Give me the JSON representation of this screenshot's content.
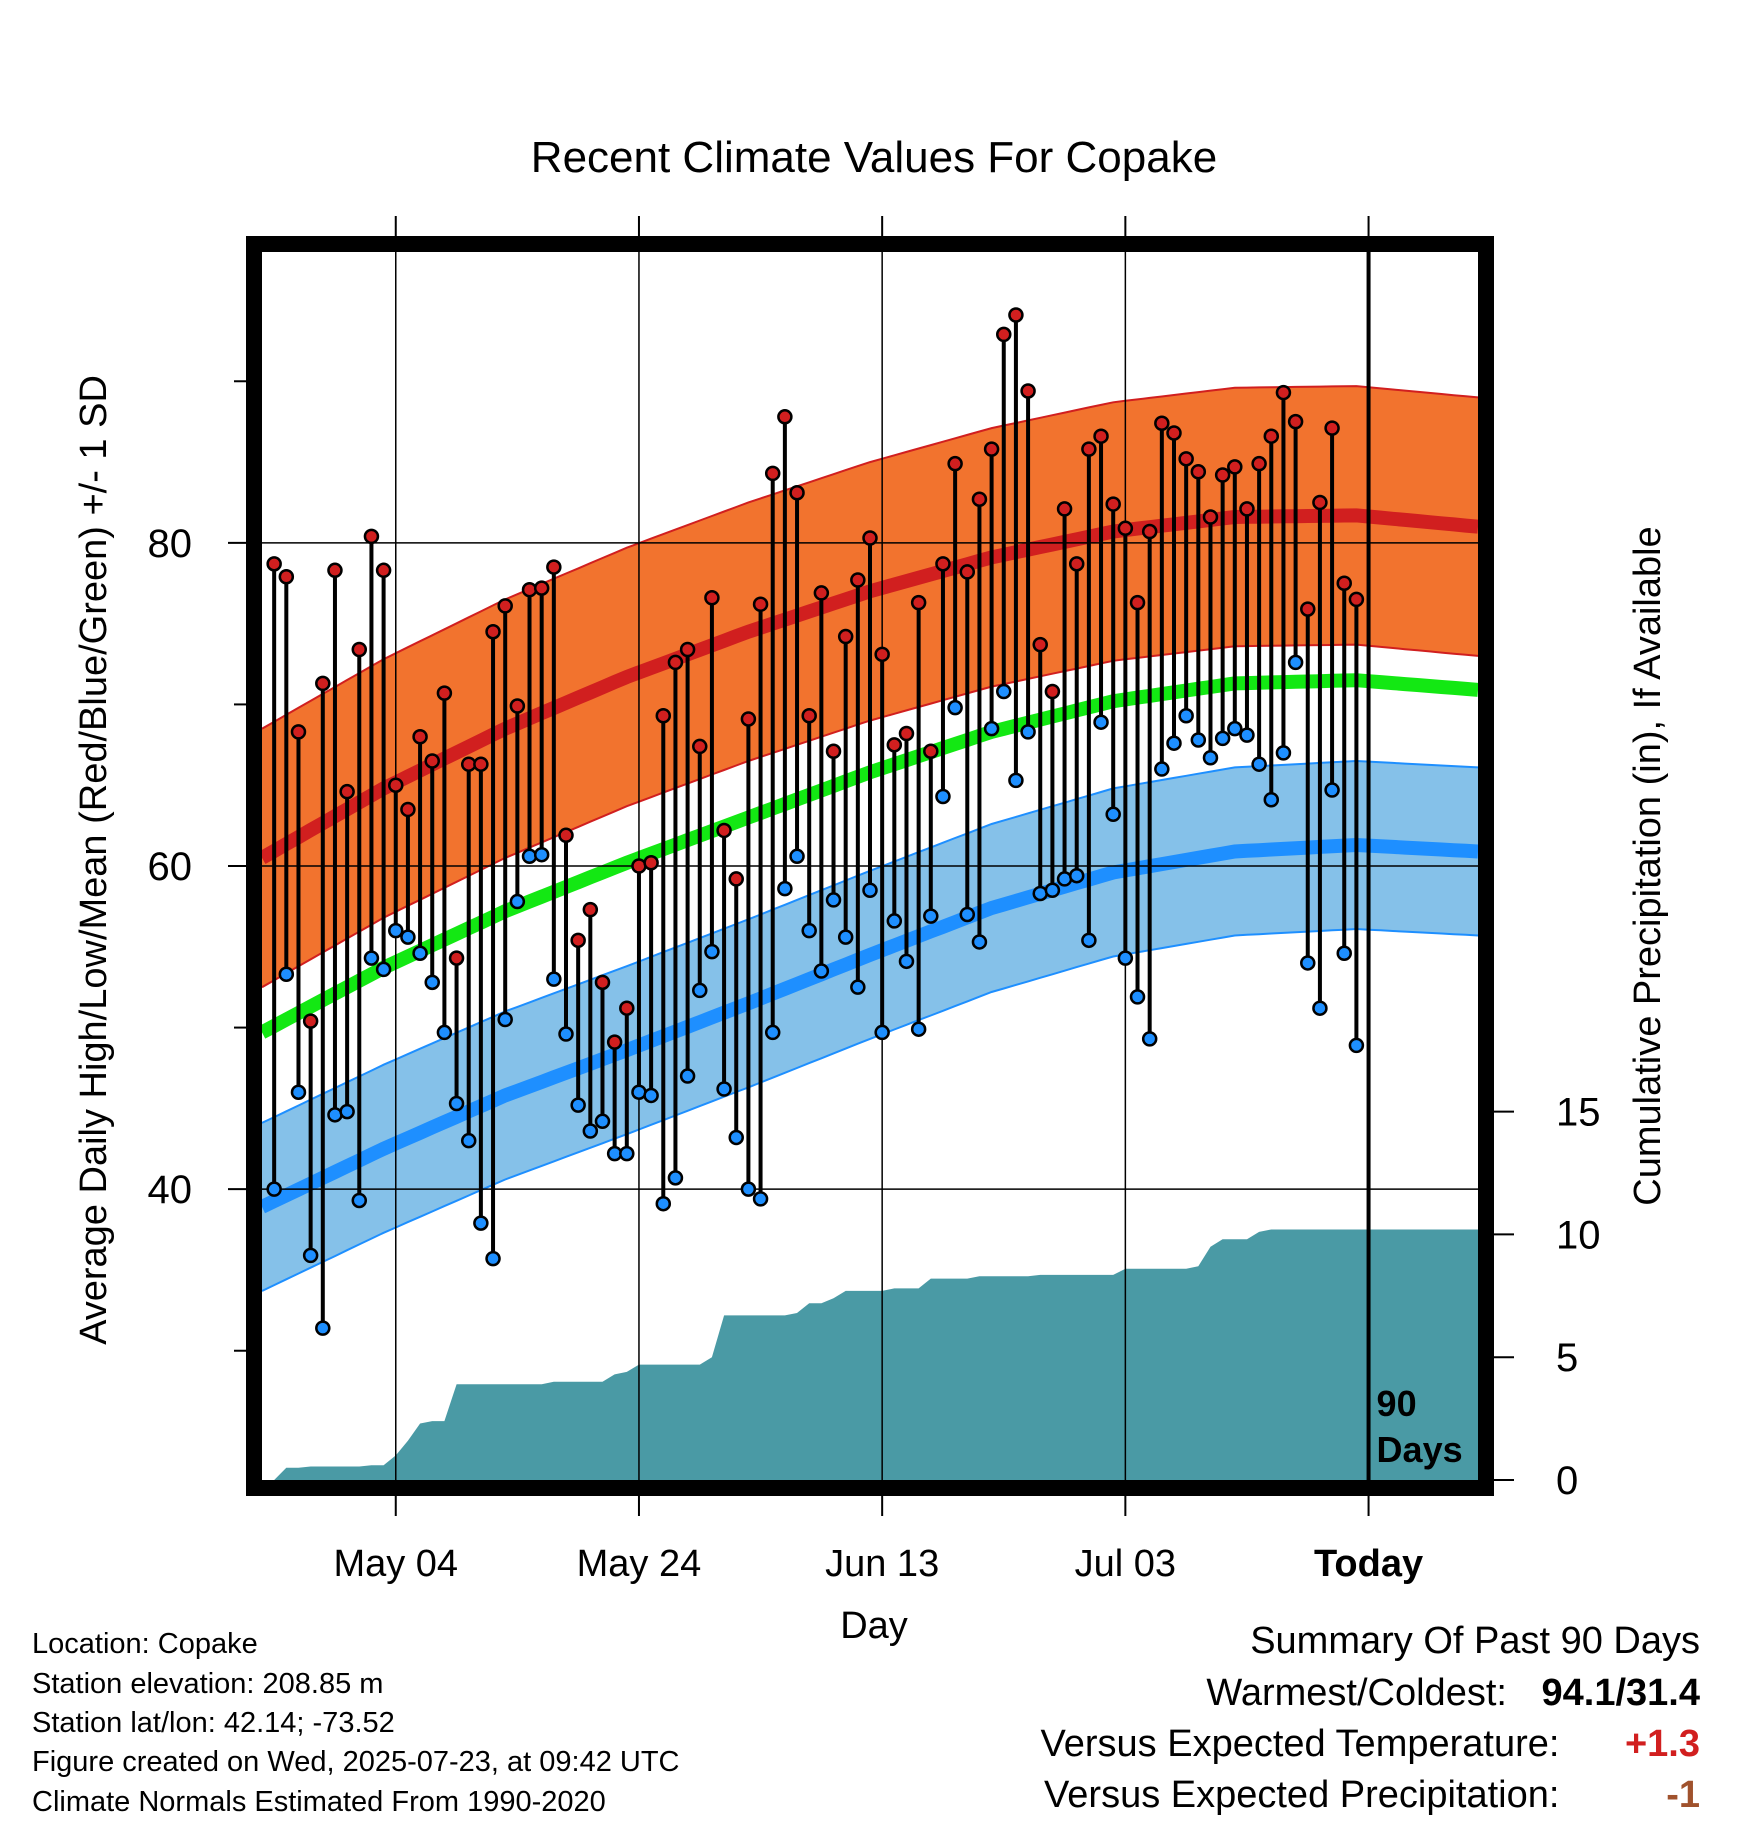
{
  "chart_data": {
    "type": "line",
    "title": "Recent Climate Values For Copake",
    "xlabel": "Day",
    "ylabel_left": "Average Daily High/Low/Mean (Red/Blue/Green) +/- 1 SD",
    "ylabel_right": "Cumulative Precipitation (in), If Available",
    "x_tick_labels": [
      "May 04",
      "May 24",
      "Jun 13",
      "Jul 03",
      "Today"
    ],
    "x_tick_days": [
      11,
      31,
      51,
      71,
      91
    ],
    "y_ticks_left": [
      40,
      60,
      80
    ],
    "y_ticks_right": [
      0,
      5,
      10,
      15
    ],
    "ylim_left": [
      22,
      98
    ],
    "ylim_right": [
      0,
      50
    ],
    "today_label": "90\nDays",
    "daily_high": [
      78.7,
      77.9,
      68.3,
      50.4,
      71.3,
      78.3,
      64.6,
      73.4,
      80.4,
      78.3,
      65.0,
      63.5,
      68.0,
      66.5,
      70.7,
      54.3,
      66.3,
      66.3,
      74.5,
      76.1,
      69.9,
      77.1,
      77.2,
      78.5,
      61.9,
      55.4,
      57.3,
      52.8,
      49.1,
      51.2,
      60.0,
      60.2,
      69.3,
      72.6,
      73.4,
      67.4,
      76.6,
      62.2,
      59.2,
      69.1,
      76.2,
      84.3,
      87.8,
      83.1,
      69.3,
      76.9,
      67.1,
      74.2,
      77.7,
      80.3,
      73.1,
      67.5,
      68.2,
      76.3,
      67.1,
      78.7,
      84.9,
      78.2,
      82.7,
      85.8,
      92.9,
      94.1,
      89.4,
      73.7,
      70.8,
      82.1,
      78.7,
      85.8,
      86.6,
      82.4,
      80.9,
      76.3,
      80.7,
      87.4,
      86.8,
      85.2,
      84.4,
      81.6,
      84.2,
      84.7,
      82.1,
      84.9,
      86.6,
      89.3,
      87.5,
      75.9,
      82.5,
      87.1,
      77.5,
      76.5
    ],
    "daily_low": [
      40.0,
      53.3,
      46.0,
      35.9,
      31.4,
      44.6,
      44.8,
      39.3,
      54.3,
      53.6,
      56.0,
      55.6,
      54.6,
      52.8,
      49.7,
      45.3,
      43.0,
      37.9,
      35.7,
      50.5,
      57.8,
      60.6,
      60.7,
      53.0,
      49.6,
      45.2,
      43.6,
      44.2,
      42.2,
      42.2,
      46.0,
      45.8,
      39.1,
      40.7,
      47.0,
      52.3,
      54.7,
      46.2,
      43.2,
      40.0,
      39.4,
      49.7,
      58.6,
      60.6,
      56.0,
      53.5,
      57.9,
      55.6,
      52.5,
      58.5,
      49.7,
      56.6,
      54.1,
      49.9,
      56.9,
      64.3,
      69.8,
      57.0,
      55.3,
      68.5,
      70.8,
      65.3,
      68.3,
      58.3,
      58.5,
      59.2,
      59.4,
      55.4,
      68.9,
      63.2,
      54.3,
      51.9,
      49.3,
      66.0,
      67.6,
      69.3,
      67.8,
      66.7,
      67.9,
      68.5,
      68.1,
      66.3,
      64.1,
      67.0,
      72.6,
      54.0,
      51.2,
      64.7,
      54.6,
      48.9
    ],
    "normal_high": {
      "days": [
        0,
        10,
        20,
        30,
        40,
        50,
        60,
        70,
        80,
        90,
        100
      ],
      "values": [
        60.5,
        64.8,
        68.5,
        71.7,
        74.5,
        77.0,
        79.1,
        80.7,
        81.6,
        81.7,
        81.0
      ]
    },
    "normal_low": {
      "days": [
        0,
        10,
        20,
        30,
        40,
        50,
        60,
        70,
        80,
        90,
        100
      ],
      "values": [
        38.9,
        42.5,
        45.8,
        48.6,
        51.5,
        54.5,
        57.4,
        59.6,
        60.9,
        61.3,
        60.9
      ]
    },
    "normal_mean": {
      "days": [
        0,
        10,
        20,
        30,
        40,
        50,
        60,
        70,
        80,
        90,
        100
      ],
      "values": [
        49.7,
        53.7,
        57.2,
        60.2,
        63.0,
        65.8,
        68.3,
        70.2,
        71.3,
        71.5,
        70.9
      ]
    },
    "high_sd": 8.0,
    "low_sd": 5.2,
    "cumulative_precip": {
      "days": [
        1,
        2,
        3,
        4,
        5,
        6,
        7,
        8,
        9,
        10,
        11,
        12,
        13,
        14,
        15,
        16,
        17,
        18,
        19,
        20,
        21,
        22,
        23,
        24,
        25,
        26,
        27,
        28,
        29,
        30,
        31,
        32,
        33,
        34,
        35,
        36,
        37,
        38,
        39,
        40,
        41,
        42,
        43,
        44,
        45,
        46,
        47,
        48,
        49,
        50,
        51,
        52,
        53,
        54,
        55,
        56,
        57,
        58,
        59,
        60,
        61,
        62,
        63,
        64,
        65,
        66,
        67,
        68,
        69,
        70,
        71,
        72,
        73,
        74,
        75,
        76,
        77,
        78,
        79,
        80,
        81,
        82,
        83,
        84,
        85,
        86,
        87,
        88,
        89,
        90,
        91,
        100
      ],
      "values": [
        0.0,
        0.5,
        0.5,
        0.55,
        0.55,
        0.55,
        0.55,
        0.55,
        0.6,
        0.6,
        1.0,
        1.6,
        2.3,
        2.4,
        2.4,
        3.9,
        3.9,
        3.9,
        3.9,
        3.9,
        3.9,
        3.9,
        3.9,
        4.0,
        4.0,
        4.0,
        4.0,
        4.0,
        4.3,
        4.4,
        4.7,
        4.7,
        4.7,
        4.7,
        4.7,
        4.7,
        5.0,
        6.7,
        6.7,
        6.7,
        6.7,
        6.7,
        6.7,
        6.8,
        7.2,
        7.2,
        7.4,
        7.7,
        7.7,
        7.7,
        7.7,
        7.8,
        7.8,
        7.8,
        8.2,
        8.2,
        8.2,
        8.2,
        8.3,
        8.3,
        8.3,
        8.3,
        8.3,
        8.35,
        8.35,
        8.35,
        8.35,
        8.35,
        8.35,
        8.35,
        8.6,
        8.6,
        8.6,
        8.6,
        8.6,
        8.6,
        8.7,
        9.5,
        9.8,
        9.8,
        9.8,
        10.1,
        10.2,
        10.2,
        10.2,
        10.2,
        10.2,
        10.2,
        10.2,
        10.2,
        10.2,
        10.2
      ]
    },
    "colors": {
      "high_band": "#f2732e",
      "high_line": "#d11f1f",
      "low_band": "#85c1e9",
      "low_line": "#1e8fff",
      "mean_line": "#13e813",
      "precip_fill": "#4a9aa5",
      "high_marker": "#d11f1f",
      "low_marker": "#1e8fff"
    },
    "grid": true
  },
  "info": {
    "location": "Location: Copake",
    "elevation": "Station elevation: 208.85 m",
    "latlon": "Station lat/lon: 42.14; -73.52",
    "created": "Figure created on Wed, 2025-07-23, at 09:42 UTC",
    "normals": "Climate Normals Estimated From 1990-2020"
  },
  "summary": {
    "heading": "Summary Of Past 90 Days",
    "warmest_coldest_label": "Warmest/Coldest:",
    "warmest_coldest_value": "94.1/31.4",
    "temp_label": "Versus Expected Temperature:",
    "temp_value": "+1.3",
    "temp_color": "#d11f1f",
    "precip_label": "Versus Expected Precipitation:",
    "precip_value": "-1",
    "precip_color": "#a0522d"
  }
}
